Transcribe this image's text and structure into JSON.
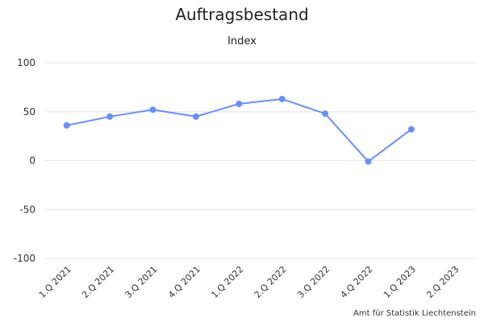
{
  "chart_data": {
    "type": "line",
    "title": "Auftragsbestand",
    "subtitle": "Index",
    "categories": [
      "1.Q 2021",
      "2.Q 2021",
      "3.Q 2021",
      "4.Q 2021",
      "1.Q 2022",
      "2.Q 2022",
      "3.Q 2022",
      "4.Q 2022",
      "1.Q 2023",
      "2.Q 2023"
    ],
    "series": [
      {
        "values": [
          36,
          45,
          52,
          45,
          58,
          63,
          48,
          -1,
          32,
          null
        ],
        "color": "#6b8ff7"
      }
    ],
    "ylim": [
      -100,
      100
    ],
    "yticks": [
      100,
      50,
      0,
      -50,
      -100
    ],
    "grid": true,
    "legend": "none",
    "source": "Amt für Statistik Liechtenstein"
  }
}
